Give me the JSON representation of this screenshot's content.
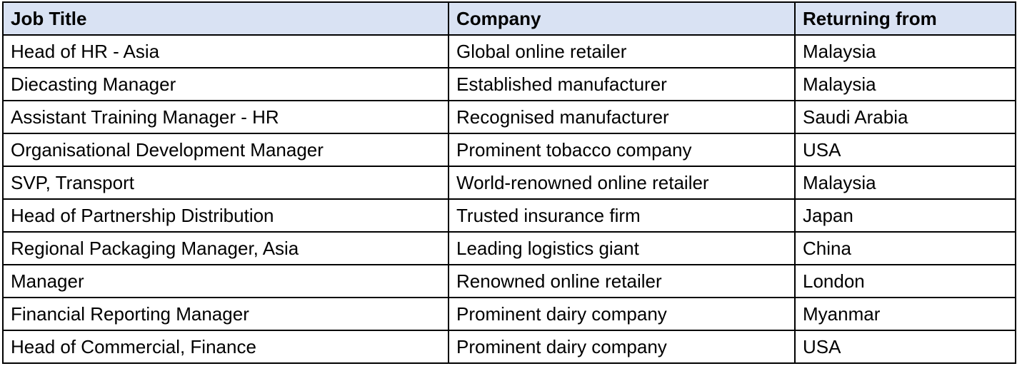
{
  "table": {
    "header_bg": "#d9e2f3",
    "headers": [
      "Job Title",
      "Company",
      "Returning from"
    ],
    "rows": [
      [
        "Head of HR - Asia",
        "Global online retailer",
        "Malaysia"
      ],
      [
        "Diecasting Manager",
        "Established manufacturer",
        "Malaysia"
      ],
      [
        "Assistant Training Manager - HR",
        "Recognised manufacturer",
        "Saudi Arabia"
      ],
      [
        "Organisational Development Manager",
        "Prominent tobacco company",
        "USA"
      ],
      [
        "SVP, Transport",
        "World-renowned online retailer",
        "Malaysia"
      ],
      [
        "Head of Partnership Distribution",
        "Trusted insurance firm",
        "Japan"
      ],
      [
        "Regional Packaging Manager, Asia",
        "Leading logistics giant",
        "China"
      ],
      [
        "Manager",
        "Renowned online retailer",
        "London"
      ],
      [
        "Financial Reporting Manager",
        "Prominent dairy company",
        "Myanmar"
      ],
      [
        "Head of Commercial, Finance",
        "Prominent dairy company",
        "USA"
      ]
    ]
  }
}
